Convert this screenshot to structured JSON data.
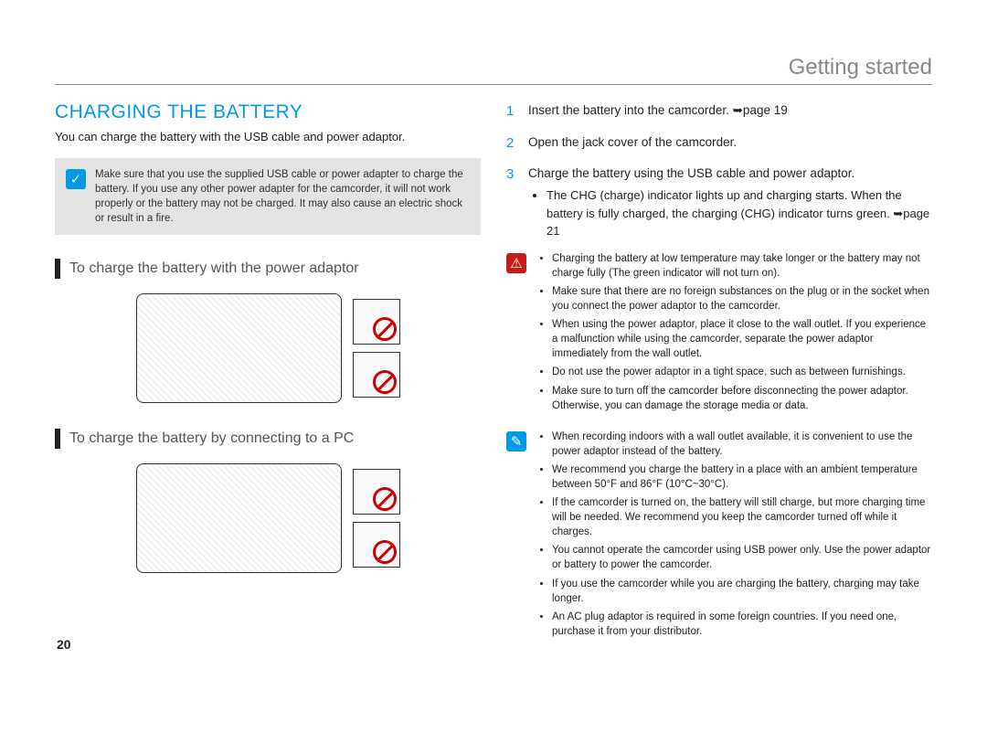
{
  "header": {
    "chapter": "Getting started"
  },
  "page_number": "20",
  "colors": {
    "accent": "#0099e6",
    "warning": "#c71b1b",
    "text": "#222222",
    "muted": "#888888",
    "notebox_bg": "#e3e3e3",
    "prohibit": "#cc0000"
  },
  "left": {
    "title": "CHARGING THE BATTERY",
    "intro": "You can charge the battery with the USB cable and power adaptor.",
    "note": "Make sure that you use the supplied USB cable or power adapter to charge the battery. If you use any other power adapter for the camcorder, it will not work properly or the battery may not be charged. It may also cause an electric shock or result in a fire.",
    "sub1": "To charge the battery with the power adaptor",
    "sub2": "To charge the battery by connecting to a PC"
  },
  "right": {
    "steps": [
      {
        "n": "1",
        "text": "Insert the battery into the camcorder. ➥page 19"
      },
      {
        "n": "2",
        "text": "Open the jack cover of the camcorder."
      },
      {
        "n": "3",
        "text": "Charge the battery using the USB cable and power adaptor.",
        "sub": "The CHG (charge) indicator lights up and charging starts. When the battery is fully charged, the charging (CHG) indicator turns green. ➥page 21"
      }
    ],
    "warn": [
      "Charging the battery at low temperature may take longer or the battery may not charge fully (The green indicator will not turn on).",
      "Make sure that there are no foreign substances on the plug or in the socket when you connect the power adaptor to the camcorder.",
      "When using the power adaptor, place it close to the wall outlet. If you experience a malfunction while using the camcorder, separate the power adaptor immediately from the wall outlet.",
      "Do not use the power adaptor in a tight space, such as between furnishings.",
      "Make sure to turn off the camcorder before disconnecting the power adaptor. Otherwise, you can damage the storage media or data."
    ],
    "tips": [
      "When recording indoors with a wall outlet available, it is convenient to use the power adaptor instead of the battery.",
      "We recommend you charge the battery in a place with an ambient temperature between 50°F and 86°F (10°C~30°C).",
      "If the camcorder is turned on, the battery will still charge, but more charging time will be needed. We recommend you keep the camcorder turned off while it charges.",
      "You cannot operate the camcorder using USB power only. Use the power adaptor or battery to power the camcorder.",
      "If you use the camcorder while you are charging the battery, charging may take longer.",
      "An AC plug adaptor is required in some foreign countries. If you need one, purchase it from your distributor."
    ]
  }
}
